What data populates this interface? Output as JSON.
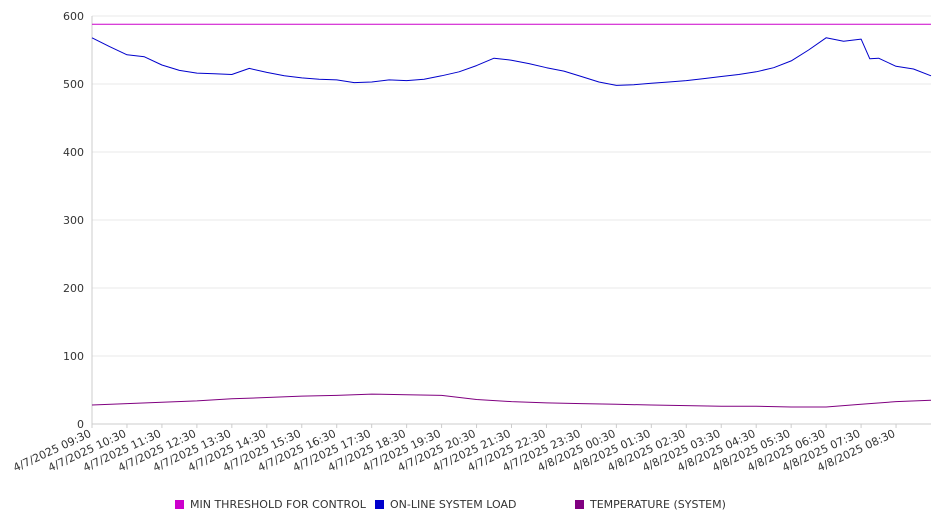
{
  "chart_data": {
    "type": "line",
    "title": "",
    "xlabel": "",
    "ylabel": "",
    "ylim": [
      0,
      600
    ],
    "yticks": [
      0,
      100,
      200,
      300,
      400,
      500,
      600
    ],
    "grid": "horizontal",
    "legend_position": "bottom",
    "x_tick_labels": [
      "4/7/2025 09:30",
      "4/7/2025 10:30",
      "4/7/2025 11:30",
      "4/7/2025 12:30",
      "4/7/2025 13:30",
      "4/7/2025 14:30",
      "4/7/2025 15:30",
      "4/7/2025 16:30",
      "4/7/2025 17:30",
      "4/7/2025 18:30",
      "4/7/2025 19:30",
      "4/7/2025 20:30",
      "4/7/2025 21:30",
      "4/7/2025 22:30",
      "4/7/2025 23:30",
      "4/8/2025 00:30",
      "4/8/2025 01:30",
      "4/8/2025 02:30",
      "4/8/2025 03:30",
      "4/8/2025 04:30",
      "4/8/2025 05:30",
      "4/8/2025 06:30",
      "4/8/2025 07:30",
      "4/8/2025 08:30"
    ],
    "x_start": "4/7/2025 09:30",
    "x_end": "4/8/2025 09:30",
    "series": [
      {
        "name": "MIN THRESHOLD FOR CONTROL",
        "color": "#cc00cc",
        "points": [
          [
            "4/7/2025 09:30",
            588
          ],
          [
            "4/8/2025 09:30",
            588
          ]
        ]
      },
      {
        "name": "ON-LINE SYSTEM LOAD",
        "color": "#0000cc",
        "points": [
          [
            "4/7/2025 09:30",
            568
          ],
          [
            "4/7/2025 10:00",
            555
          ],
          [
            "4/7/2025 10:30",
            543
          ],
          [
            "4/7/2025 11:00",
            540
          ],
          [
            "4/7/2025 11:30",
            528
          ],
          [
            "4/7/2025 12:00",
            520
          ],
          [
            "4/7/2025 12:30",
            516
          ],
          [
            "4/7/2025 13:00",
            515
          ],
          [
            "4/7/2025 13:30",
            514
          ],
          [
            "4/7/2025 14:00",
            523
          ],
          [
            "4/7/2025 14:30",
            517
          ],
          [
            "4/7/2025 15:00",
            512
          ],
          [
            "4/7/2025 15:30",
            509
          ],
          [
            "4/7/2025 16:00",
            507
          ],
          [
            "4/7/2025 16:30",
            506
          ],
          [
            "4/7/2025 17:00",
            502
          ],
          [
            "4/7/2025 17:30",
            503
          ],
          [
            "4/7/2025 18:00",
            506
          ],
          [
            "4/7/2025 18:30",
            505
          ],
          [
            "4/7/2025 19:00",
            507
          ],
          [
            "4/7/2025 19:30",
            512
          ],
          [
            "4/7/2025 20:00",
            518
          ],
          [
            "4/7/2025 20:30",
            527
          ],
          [
            "4/7/2025 21:00",
            538
          ],
          [
            "4/7/2025 21:30",
            535
          ],
          [
            "4/7/2025 22:00",
            530
          ],
          [
            "4/7/2025 22:30",
            524
          ],
          [
            "4/7/2025 23:00",
            519
          ],
          [
            "4/7/2025 23:30",
            511
          ],
          [
            "4/8/2025 00:00",
            503
          ],
          [
            "4/8/2025 00:30",
            498
          ],
          [
            "4/8/2025 01:00",
            499
          ],
          [
            "4/8/2025 01:30",
            501
          ],
          [
            "4/8/2025 02:00",
            503
          ],
          [
            "4/8/2025 02:30",
            505
          ],
          [
            "4/8/2025 03:00",
            508
          ],
          [
            "4/8/2025 03:30",
            511
          ],
          [
            "4/8/2025 04:00",
            514
          ],
          [
            "4/8/2025 04:30",
            518
          ],
          [
            "4/8/2025 05:00",
            524
          ],
          [
            "4/8/2025 05:30",
            534
          ],
          [
            "4/8/2025 06:00",
            550
          ],
          [
            "4/8/2025 06:30",
            568
          ],
          [
            "4/8/2025 07:00",
            563
          ],
          [
            "4/8/2025 07:30",
            566
          ],
          [
            "4/8/2025 07:45",
            537
          ],
          [
            "4/8/2025 08:00",
            538
          ],
          [
            "4/8/2025 08:30",
            526
          ],
          [
            "4/8/2025 09:00",
            522
          ],
          [
            "4/8/2025 09:30",
            512
          ]
        ]
      },
      {
        "name": "TEMPERATURE (SYSTEM)",
        "color": "#800080",
        "points": [
          [
            "4/7/2025 09:30",
            28
          ],
          [
            "4/7/2025 10:30",
            30
          ],
          [
            "4/7/2025 11:30",
            32
          ],
          [
            "4/7/2025 12:30",
            34
          ],
          [
            "4/7/2025 13:30",
            37
          ],
          [
            "4/7/2025 14:30",
            39
          ],
          [
            "4/7/2025 15:30",
            41
          ],
          [
            "4/7/2025 16:30",
            42
          ],
          [
            "4/7/2025 17:30",
            44
          ],
          [
            "4/7/2025 18:30",
            43
          ],
          [
            "4/7/2025 19:30",
            42
          ],
          [
            "4/7/2025 20:30",
            36
          ],
          [
            "4/7/2025 21:30",
            33
          ],
          [
            "4/7/2025 22:30",
            31
          ],
          [
            "4/7/2025 23:30",
            30
          ],
          [
            "4/8/2025 00:30",
            29
          ],
          [
            "4/8/2025 01:30",
            28
          ],
          [
            "4/8/2025 02:30",
            27
          ],
          [
            "4/8/2025 03:30",
            26
          ],
          [
            "4/8/2025 04:30",
            26
          ],
          [
            "4/8/2025 05:30",
            25
          ],
          [
            "4/8/2025 06:30",
            25
          ],
          [
            "4/8/2025 07:30",
            29
          ],
          [
            "4/8/2025 08:30",
            33
          ],
          [
            "4/8/2025 09:30",
            35
          ]
        ]
      }
    ]
  }
}
